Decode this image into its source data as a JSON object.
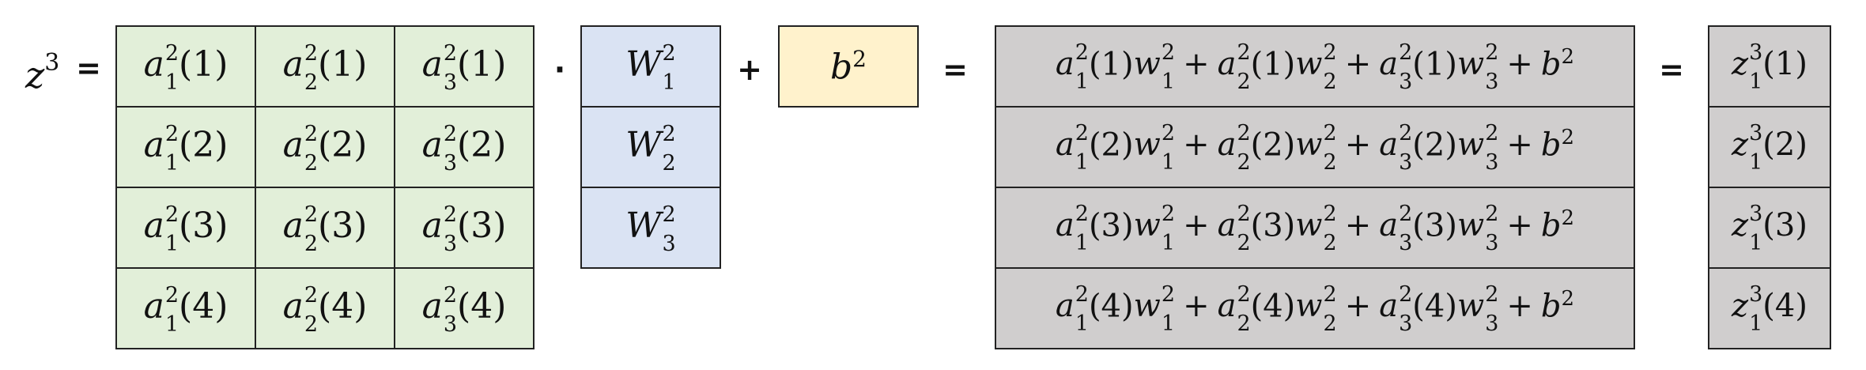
{
  "lhs": {
    "var": "z",
    "sup": "3",
    "equals": "="
  },
  "operators": {
    "dot": "·",
    "plus": "+",
    "eq1": "=",
    "eq2": "="
  },
  "a_matrix": {
    "var": "a",
    "sup": "2",
    "rows": [
      [
        {
          "sub": "1",
          "arg": "1"
        },
        {
          "sub": "2",
          "arg": "1"
        },
        {
          "sub": "3",
          "arg": "1"
        }
      ],
      [
        {
          "sub": "1",
          "arg": "2"
        },
        {
          "sub": "2",
          "arg": "2"
        },
        {
          "sub": "3",
          "arg": "2"
        }
      ],
      [
        {
          "sub": "1",
          "arg": "3"
        },
        {
          "sub": "2",
          "arg": "3"
        },
        {
          "sub": "3",
          "arg": "3"
        }
      ],
      [
        {
          "sub": "1",
          "arg": "4"
        },
        {
          "sub": "2",
          "arg": "4"
        },
        {
          "sub": "3",
          "arg": "4"
        }
      ]
    ]
  },
  "w_vector": {
    "var": "W",
    "sup": "2",
    "subs": [
      "1",
      "2",
      "3"
    ]
  },
  "bias": {
    "var": "b",
    "sup": "2"
  },
  "sum_rows": [
    {
      "arg": "1"
    },
    {
      "arg": "2"
    },
    {
      "arg": "3"
    },
    {
      "arg": "4"
    }
  ],
  "sum_terms": {
    "a_var": "a",
    "w_var": "w",
    "sup": "2",
    "b_var": "b",
    "b_sup": "2",
    "plus": "+"
  },
  "z_vector": {
    "var": "z",
    "sup": "3",
    "sub": "1",
    "args": [
      "1",
      "2",
      "3",
      "4"
    ]
  },
  "colors": {
    "a_fill": "#e2efd9",
    "w_fill": "#dae3f3",
    "b_fill": "#fff2cc",
    "result_fill": "#d0cece"
  }
}
